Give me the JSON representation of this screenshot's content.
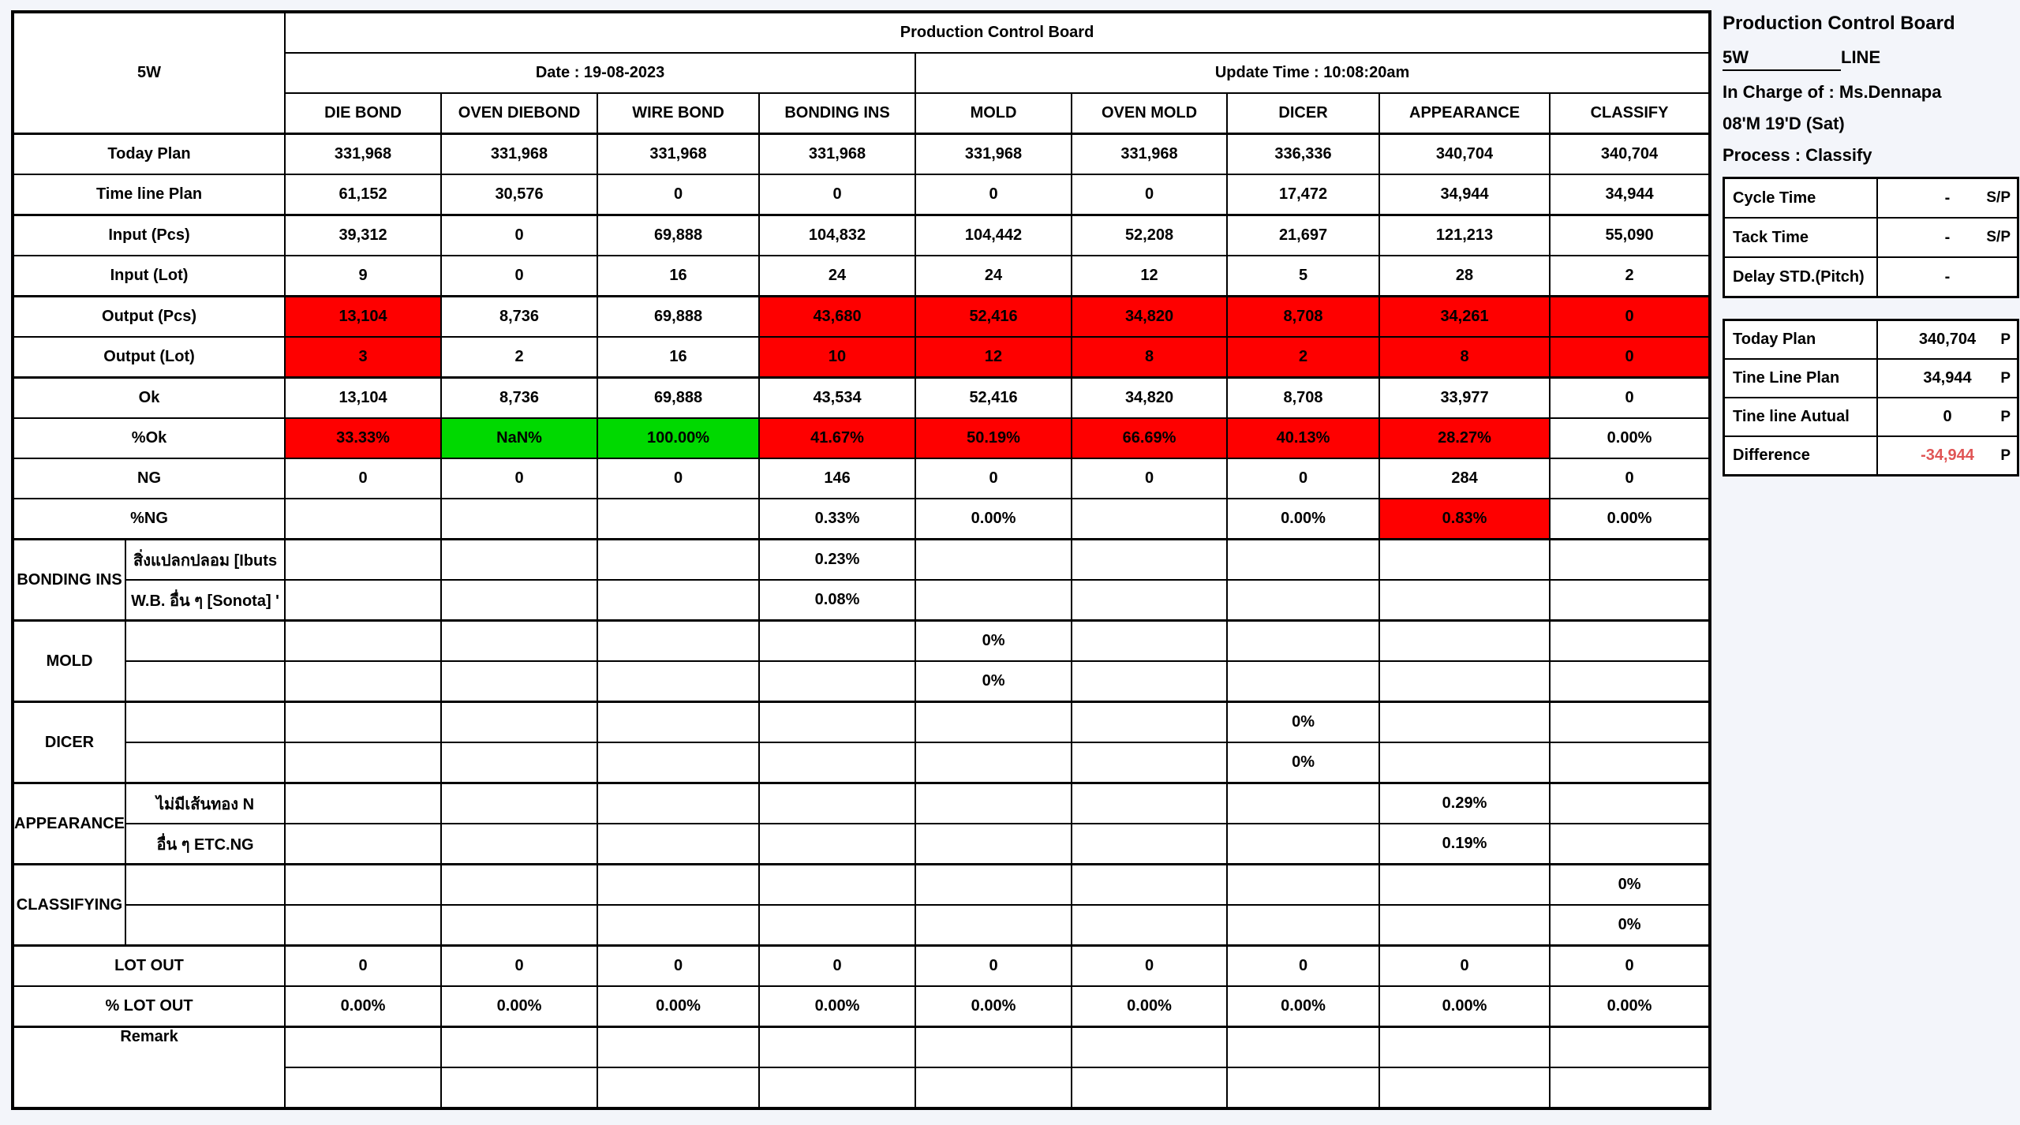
{
  "board": {
    "logo": "5W",
    "title": "Production Control Board",
    "date_label": "Date : 19-08-2023",
    "update_label": "Update Time : 10:08:20am",
    "columns": [
      "DIE BOND",
      "OVEN DIEBOND",
      "WIRE BOND",
      "BONDING INS",
      "MOLD",
      "OVEN MOLD",
      "DICER",
      "APPEARANCE",
      "CLASSIFY"
    ],
    "colors": {
      "alert_red": "#fe0000",
      "ok_green": "#00d900",
      "negative_red": "#e05555"
    },
    "rows": [
      {
        "type": "plain",
        "name": "today-plan",
        "label": "Today Plan",
        "border": "thick",
        "cells": [
          "331,968",
          "331,968",
          "331,968",
          "331,968",
          "331,968",
          "331,968",
          "336,336",
          "340,704",
          "340,704"
        ]
      },
      {
        "type": "plain",
        "name": "timeline-plan",
        "label": "Time line Plan",
        "border": "med",
        "cells": [
          "61,152",
          "30,576",
          "0",
          "0",
          "0",
          "0",
          "17,472",
          "34,944",
          "34,944"
        ]
      },
      {
        "type": "plain",
        "name": "input-pcs",
        "label": "Input (Pcs)",
        "border": "thick",
        "sz": [
          "s",
          "s",
          "s",
          "s",
          "s",
          "s",
          "s",
          "l",
          "l"
        ],
        "cells": [
          "39,312",
          "0",
          "69,888",
          "104,832",
          "104,442",
          "52,208",
          "21,697",
          "121,213",
          "55,090"
        ]
      },
      {
        "type": "plain",
        "name": "input-lot",
        "label": "Input (Lot)",
        "border": "light",
        "sz": [
          "l",
          "l",
          "l",
          "l",
          "l",
          "l",
          "l",
          "s",
          "s"
        ],
        "cells": [
          "9",
          "0",
          "16",
          "24",
          "24",
          "12",
          "5",
          "28",
          "2"
        ]
      },
      {
        "type": "plain",
        "name": "output-pcs",
        "label": "Output (Pcs)",
        "border": "thick",
        "bg": [
          "r",
          null,
          null,
          "r",
          "r",
          "r",
          "r",
          "r",
          "r"
        ],
        "sz": [
          "s",
          "s",
          "s",
          "s",
          "s",
          "s",
          "s",
          "l",
          "l"
        ],
        "cells": [
          "13,104",
          "8,736",
          "69,888",
          "43,680",
          "52,416",
          "34,820",
          "8,708",
          "34,261",
          "0"
        ]
      },
      {
        "type": "plain",
        "name": "output-lot",
        "label": "Output (Lot)",
        "border": "light",
        "bg": [
          "r",
          null,
          null,
          "r",
          "r",
          "r",
          "r",
          "r",
          "r"
        ],
        "sz": [
          "l",
          "l",
          "l",
          "l",
          "l",
          "l",
          "l",
          "s",
          "s"
        ],
        "cells": [
          "3",
          "2",
          "16",
          "10",
          "12",
          "8",
          "2",
          "8",
          "0"
        ]
      },
      {
        "type": "plain",
        "name": "ok",
        "label": "Ok",
        "border": "thick",
        "cells": [
          "13,104",
          "8,736",
          "69,888",
          "43,534",
          "52,416",
          "34,820",
          "8,708",
          "33,977",
          "0"
        ]
      },
      {
        "type": "plain",
        "name": "pct-ok",
        "label": "%Ok",
        "border": "light",
        "bg": [
          "r",
          "g",
          "g",
          "r",
          "r",
          "r",
          "r",
          "r",
          null
        ],
        "cells": [
          "33.33%",
          "NaN%",
          "100.00%",
          "41.67%",
          "50.19%",
          "66.69%",
          "40.13%",
          "28.27%",
          "0.00%"
        ]
      },
      {
        "type": "plain",
        "name": "ng",
        "label": "NG",
        "border": "med",
        "cells": [
          "0",
          "0",
          "0",
          "146",
          "0",
          "0",
          "0",
          "284",
          "0"
        ]
      },
      {
        "type": "plain",
        "name": "pct-ng",
        "label": "%NG",
        "border": "light",
        "bg": [
          null,
          null,
          null,
          null,
          null,
          null,
          null,
          "r",
          null
        ],
        "cells": [
          "",
          "",
          "",
          "0.33%",
          "0.00%",
          "",
          "0.00%",
          "0.83%",
          "0.00%"
        ]
      },
      {
        "type": "section",
        "name": "bonding-ins",
        "label": "BONDING INS",
        "rows": [
          {
            "label": "สิ่งแปลกปลอม [Ibuts",
            "cells": {
              "3": "0.23%"
            }
          },
          {
            "label": "W.B. อื่น ๆ [Sonota] '",
            "cells": {
              "3": "0.08%"
            }
          }
        ]
      },
      {
        "type": "section",
        "name": "mold",
        "label": "MOLD",
        "rows": [
          {
            "label": "",
            "cells": {
              "4": "0%"
            }
          },
          {
            "label": "",
            "cells": {
              "4": "0%"
            }
          }
        ]
      },
      {
        "type": "section",
        "name": "dicer",
        "label": "DICER",
        "rows": [
          {
            "label": "",
            "cells": {
              "6": "0%"
            }
          },
          {
            "label": "",
            "cells": {
              "6": "0%"
            }
          }
        ]
      },
      {
        "type": "section",
        "name": "appearance",
        "label": "APPEARANCE",
        "rows": [
          {
            "label": "ไม่มีเส้นทอง N",
            "cells": {
              "7": "0.29%"
            }
          },
          {
            "label": "อื่น ๆ ETC.NG",
            "cells": {
              "7": "0.19%"
            }
          }
        ]
      },
      {
        "type": "section",
        "name": "classifying",
        "label": "CLASSIFYING",
        "rows": [
          {
            "label": "",
            "cells": {
              "8": "0%"
            }
          },
          {
            "label": "",
            "cells": {
              "8": "0%"
            }
          }
        ]
      },
      {
        "type": "plain",
        "name": "lot-out",
        "label": "LOT OUT",
        "border": "thick",
        "cells": [
          "0",
          "0",
          "0",
          "0",
          "0",
          "0",
          "0",
          "0",
          "0"
        ]
      },
      {
        "type": "plain",
        "name": "pct-lot-out",
        "label": "% LOT OUT",
        "border": "med",
        "cells": [
          "0.00%",
          "0.00%",
          "0.00%",
          "0.00%",
          "0.00%",
          "0.00%",
          "0.00%",
          "0.00%",
          "0.00%"
        ]
      },
      {
        "type": "remark",
        "name": "remark",
        "label": "Remark"
      }
    ]
  },
  "side": {
    "title": "Production Control Board",
    "line_value": "5W",
    "line_label": "LINE",
    "in_charge": "In Charge of : Ms.Dennapa",
    "date_code": "08'M 19'D (Sat)",
    "process": "Process : Classify",
    "timing_table": [
      {
        "label": "Cycle Time",
        "value": "-",
        "unit": "S/P"
      },
      {
        "label": "Tack Time",
        "value": "-",
        "unit": "S/P"
      },
      {
        "label": "Delay STD.(Pitch)",
        "value": "-",
        "unit": ""
      }
    ],
    "plan_table": [
      {
        "label": "Today Plan",
        "value": "340,704",
        "unit": "P",
        "negative": false
      },
      {
        "label": "Tine Line Plan",
        "value": "34,944",
        "unit": "P",
        "negative": false
      },
      {
        "label": "Tine line Autual",
        "value": "0",
        "unit": "P",
        "negative": false
      },
      {
        "label": "Difference",
        "value": "-34,944",
        "unit": "P",
        "negative": true
      }
    ]
  }
}
